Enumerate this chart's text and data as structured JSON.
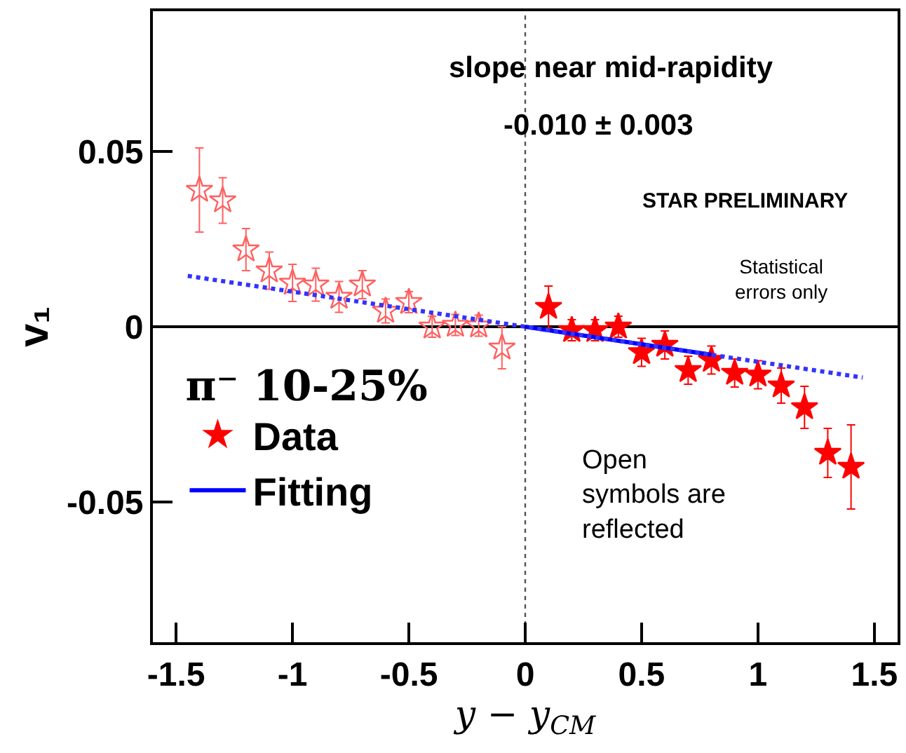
{
  "chart_data": {
    "type": "scatter",
    "xlabel": "y − y$_{CM}$",
    "ylabel": "v₁",
    "legend_title": "π⁻ 10-25%",
    "xlim": [
      -1.6,
      1.6
    ],
    "xticks": [
      -1.5,
      -1,
      -0.5,
      0,
      0.5,
      1,
      1.5
    ],
    "ylim": [
      -0.09,
      0.09
    ],
    "yticks": [
      -0.05,
      0,
      0.05
    ],
    "grid": false,
    "legend": "bottom left",
    "annotations": [
      "slope near mid-rapidity",
      "-0.010 ± 0.003",
      "STAR PRELIMINARY",
      "Statistical\nerrors only",
      "Open\nsymbols are\nreflected"
    ],
    "ref_lines": [
      {
        "axis": "x",
        "value": 0,
        "color": "#555555",
        "line_style": "dotted"
      },
      {
        "axis": "y",
        "value": 0,
        "color": "#000000",
        "line_style": "solid"
      }
    ],
    "series": [
      {
        "color": "#ff6060",
        "marker": "star-open",
        "x": [
          -1.4,
          -1.3,
          -1.2,
          -1.1,
          -1.0,
          -0.9,
          -0.8,
          -0.7,
          -0.6,
          -0.5,
          -0.4,
          -0.3,
          -0.2,
          -0.1
        ],
        "values": [
          0.039,
          0.036,
          0.022,
          0.016,
          0.0125,
          0.012,
          0.0085,
          0.012,
          0.0045,
          0.007,
          0.0,
          0.0005,
          0.0003,
          -0.006
        ],
        "errors": [
          0.012,
          0.0065,
          0.006,
          0.0053,
          0.0053,
          0.0047,
          0.0044,
          0.004,
          0.0034,
          0.003,
          0.003,
          0.003,
          0.003,
          0.006
        ]
      },
      {
        "name": "Data",
        "color": "#ff0000",
        "marker": "star",
        "x": [
          0.1,
          0.2,
          0.3,
          0.4,
          0.5,
          0.6,
          0.7,
          0.8,
          0.9,
          1.0,
          1.1,
          1.2,
          1.3,
          1.4
        ],
        "values": [
          0.0056,
          -0.001,
          -0.001,
          0.0,
          -0.0073,
          -0.0052,
          -0.0124,
          -0.0095,
          -0.0132,
          -0.0137,
          -0.0168,
          -0.023,
          -0.036,
          -0.04
        ],
        "errors": [
          0.006,
          0.003,
          0.003,
          0.003,
          0.004,
          0.004,
          0.004,
          0.004,
          0.004,
          0.004,
          0.005,
          0.006,
          0.007,
          0.012
        ]
      },
      {
        "type": "line",
        "name": "Fitting",
        "color": "#0000ff",
        "marker": "none",
        "line_style": "solid",
        "x": [
          0,
          0.8
        ],
        "values": [
          0,
          -0.008
        ]
      },
      {
        "type": "line",
        "color": "#3333ff",
        "marker": "none",
        "line_style": "dotted",
        "x": [
          -1.45,
          1.45
        ],
        "values": [
          0.0145,
          -0.0145
        ]
      }
    ]
  }
}
